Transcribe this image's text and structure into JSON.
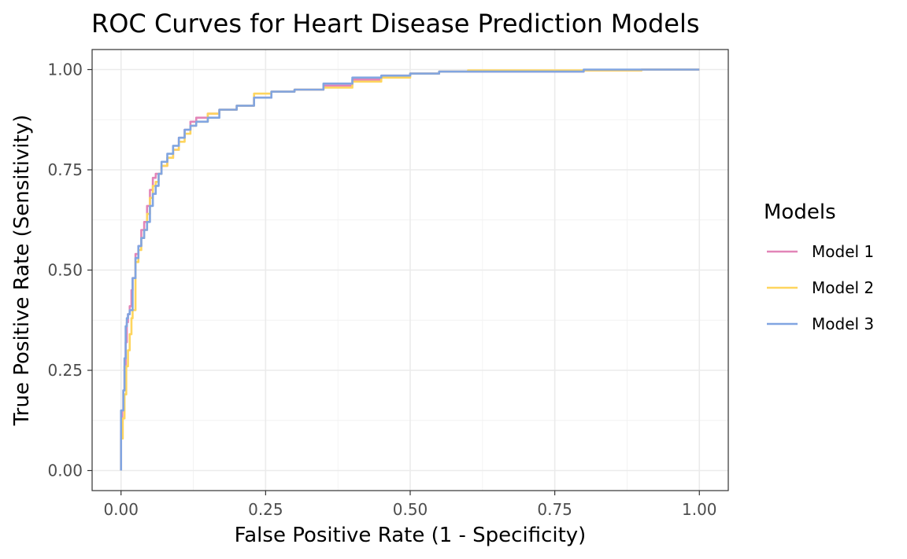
{
  "chart_data": {
    "type": "line",
    "title": "ROC Curves for Heart Disease Prediction Models",
    "xlabel": "False Positive Rate (1 - Specificity)",
    "ylabel": "True Positive Rate (Sensitivity)",
    "xlim": [
      -0.05,
      1.05
    ],
    "ylim": [
      -0.05,
      1.05
    ],
    "x_ticks": [
      0.0,
      0.25,
      0.5,
      0.75,
      1.0
    ],
    "x_tick_labels": [
      "0.00",
      "0.25",
      "0.50",
      "0.75",
      "1.00"
    ],
    "y_ticks": [
      0.0,
      0.25,
      0.5,
      0.75,
      1.0
    ],
    "y_tick_labels": [
      "0.00",
      "0.25",
      "0.50",
      "0.75",
      "1.00"
    ],
    "grid": true,
    "legend": {
      "title": "Models",
      "placement": "right"
    },
    "series": [
      {
        "name": "Model 1",
        "color": "#e285b8",
        "x": [
          0.0,
          0.0,
          0.002,
          0.004,
          0.006,
          0.008,
          0.01,
          0.012,
          0.015,
          0.018,
          0.02,
          0.025,
          0.03,
          0.035,
          0.04,
          0.045,
          0.05,
          0.055,
          0.06,
          0.065,
          0.07,
          0.08,
          0.09,
          0.1,
          0.11,
          0.12,
          0.13,
          0.15,
          0.17,
          0.2,
          0.23,
          0.26,
          0.3,
          0.35,
          0.4,
          0.45,
          0.5,
          0.55,
          0.6,
          0.7,
          0.8,
          0.9,
          1.0
        ],
        "y": [
          0.0,
          0.1,
          0.15,
          0.2,
          0.26,
          0.32,
          0.37,
          0.39,
          0.41,
          0.45,
          0.48,
          0.54,
          0.56,
          0.6,
          0.62,
          0.66,
          0.7,
          0.73,
          0.74,
          0.74,
          0.76,
          0.78,
          0.8,
          0.83,
          0.85,
          0.87,
          0.88,
          0.89,
          0.9,
          0.91,
          0.93,
          0.945,
          0.95,
          0.96,
          0.975,
          0.985,
          0.99,
          0.995,
          0.995,
          0.995,
          0.998,
          1.0,
          1.0
        ]
      },
      {
        "name": "Model 2",
        "color": "#fed55e",
        "x": [
          0.0,
          0.0,
          0.003,
          0.006,
          0.009,
          0.012,
          0.015,
          0.018,
          0.02,
          0.025,
          0.03,
          0.035,
          0.04,
          0.045,
          0.05,
          0.055,
          0.06,
          0.065,
          0.07,
          0.08,
          0.09,
          0.1,
          0.11,
          0.12,
          0.13,
          0.15,
          0.17,
          0.2,
          0.23,
          0.26,
          0.3,
          0.35,
          0.4,
          0.45,
          0.5,
          0.55,
          0.6,
          0.7,
          0.8,
          0.9,
          1.0
        ],
        "y": [
          0.0,
          0.08,
          0.13,
          0.19,
          0.26,
          0.3,
          0.34,
          0.38,
          0.4,
          0.52,
          0.55,
          0.58,
          0.6,
          0.64,
          0.68,
          0.71,
          0.72,
          0.74,
          0.76,
          0.78,
          0.8,
          0.82,
          0.84,
          0.86,
          0.87,
          0.89,
          0.9,
          0.91,
          0.94,
          0.945,
          0.95,
          0.955,
          0.97,
          0.98,
          0.99,
          0.995,
          0.998,
          0.998,
          0.998,
          1.0,
          1.0
        ]
      },
      {
        "name": "Model 3",
        "color": "#81a5e1",
        "x": [
          0.0,
          0.0,
          0.002,
          0.004,
          0.006,
          0.008,
          0.01,
          0.012,
          0.015,
          0.02,
          0.025,
          0.03,
          0.035,
          0.04,
          0.045,
          0.05,
          0.055,
          0.06,
          0.065,
          0.07,
          0.08,
          0.09,
          0.1,
          0.11,
          0.12,
          0.13,
          0.15,
          0.17,
          0.2,
          0.23,
          0.26,
          0.3,
          0.35,
          0.4,
          0.45,
          0.5,
          0.55,
          0.6,
          0.7,
          0.8,
          0.9,
          1.0
        ],
        "y": [
          0.0,
          0.15,
          0.15,
          0.2,
          0.28,
          0.36,
          0.38,
          0.39,
          0.4,
          0.48,
          0.53,
          0.56,
          0.58,
          0.6,
          0.62,
          0.66,
          0.69,
          0.71,
          0.74,
          0.77,
          0.79,
          0.81,
          0.83,
          0.85,
          0.86,
          0.87,
          0.88,
          0.9,
          0.91,
          0.93,
          0.945,
          0.95,
          0.965,
          0.98,
          0.985,
          0.99,
          0.995,
          0.995,
          0.995,
          1.0,
          1.0,
          1.0
        ]
      }
    ]
  }
}
